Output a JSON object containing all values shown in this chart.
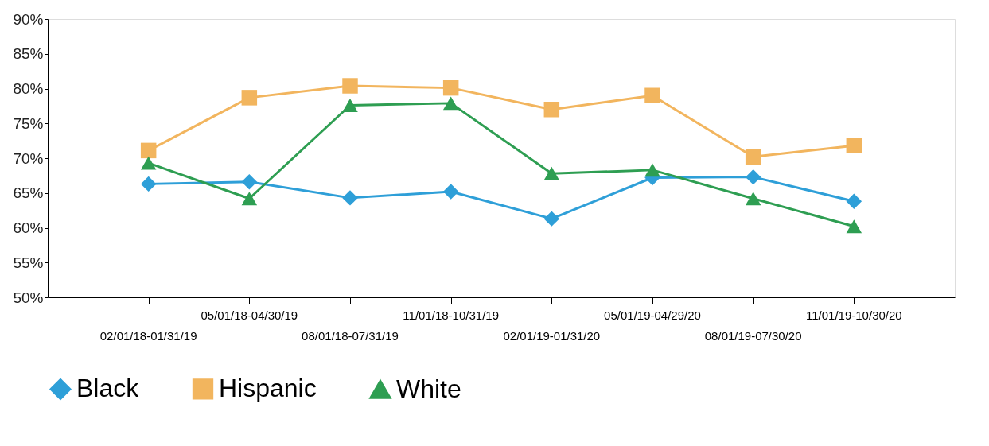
{
  "chart_data": {
    "type": "line",
    "categories": [
      "02/01/18-01/31/19",
      "05/01/18-04/30/19",
      "08/01/18-07/31/19",
      "11/01/18-10/31/19",
      "02/01/19-01/31/20",
      "05/01/19-04/29/20",
      "08/01/19-07/30/20",
      "11/01/19-10/30/20"
    ],
    "series": [
      {
        "name": "Black",
        "color": "#2e9fd8",
        "marker": "diamond",
        "values": [
          66.3,
          66.6,
          64.3,
          65.2,
          61.3,
          67.2,
          67.3,
          63.8
        ]
      },
      {
        "name": "Hispanic",
        "color": "#f2b55e",
        "marker": "square",
        "values": [
          71.1,
          78.7,
          80.4,
          80.1,
          77.0,
          79.0,
          70.2,
          71.8
        ]
      },
      {
        "name": "White",
        "color": "#2e9e52",
        "marker": "triangle",
        "values": [
          69.3,
          64.2,
          77.6,
          77.9,
          67.8,
          68.3,
          64.2,
          60.2
        ]
      }
    ],
    "ylim": [
      50,
      90
    ],
    "yticks": [
      {
        "value": 50,
        "label": "50%"
      },
      {
        "value": 55,
        "label": "55%"
      },
      {
        "value": 60,
        "label": "60%"
      },
      {
        "value": 65,
        "label": "65%"
      },
      {
        "value": 70,
        "label": "70%"
      },
      {
        "value": 75,
        "label": "75%"
      },
      {
        "value": 80,
        "label": "80%"
      },
      {
        "value": 85,
        "label": "85%"
      },
      {
        "value": 90,
        "label": "90%"
      }
    ],
    "grid": false,
    "legend": "bottom",
    "line_style": "solid"
  }
}
